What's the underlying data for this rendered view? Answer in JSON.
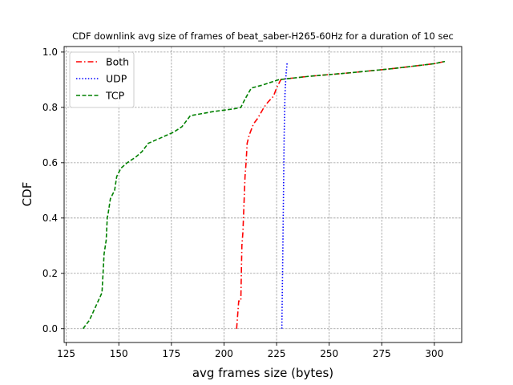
{
  "chart_data": {
    "type": "line",
    "title": "CDF downlink avg size of frames of beat_saber-H265-60Hz for a duration of 10 sec",
    "xlabel": "avg frames size (bytes)",
    "ylabel": "CDF",
    "xlim": [
      124,
      313
    ],
    "ylim": [
      -0.05,
      1.02
    ],
    "xticks": [
      125,
      150,
      175,
      200,
      225,
      250,
      275,
      300
    ],
    "yticks": [
      0.0,
      0.2,
      0.4,
      0.6,
      0.8,
      1.0
    ],
    "xtick_labels": [
      "125",
      "150",
      "175",
      "200",
      "225",
      "250",
      "275",
      "300"
    ],
    "ytick_labels": [
      "0.0",
      "0.2",
      "0.4",
      "0.6",
      "0.8",
      "1.0"
    ],
    "grid": true,
    "legend_position": "top-left",
    "series": [
      {
        "name": "Both",
        "color": "#ff0000",
        "dash": "dashdot",
        "x": [
          206,
          207,
          208,
          208.5,
          209,
          209.5,
          210,
          210.5,
          211,
          212,
          214,
          216,
          219,
          221,
          223.5,
          225,
          227,
          229,
          240,
          260,
          280,
          300,
          305
        ],
        "y": [
          0.0,
          0.1,
          0.1,
          0.3,
          0.35,
          0.45,
          0.55,
          0.6,
          0.67,
          0.7,
          0.74,
          0.76,
          0.8,
          0.82,
          0.84,
          0.87,
          0.9,
          0.903,
          0.912,
          0.925,
          0.94,
          0.958,
          0.966
        ]
      },
      {
        "name": "UDP",
        "color": "#0000ff",
        "dash": "dotted",
        "x": [
          227.5,
          228,
          228.3,
          228.6,
          229,
          229.5,
          230
        ],
        "y": [
          0.0,
          0.3,
          0.5,
          0.7,
          0.85,
          0.92,
          0.96
        ]
      },
      {
        "name": "TCP",
        "color": "#008000",
        "dash": "dashed",
        "x": [
          133,
          136,
          139,
          142,
          142.5,
          143,
          144,
          144.5,
          145,
          146,
          148,
          149,
          151,
          154,
          158,
          161,
          164,
          170,
          176,
          180,
          182,
          184,
          195,
          205,
          208,
          210,
          213,
          218,
          226,
          240,
          260,
          280,
          300,
          305
        ],
        "y": [
          0.0,
          0.03,
          0.08,
          0.13,
          0.2,
          0.27,
          0.32,
          0.4,
          0.42,
          0.47,
          0.5,
          0.55,
          0.58,
          0.6,
          0.62,
          0.64,
          0.67,
          0.69,
          0.71,
          0.73,
          0.75,
          0.77,
          0.785,
          0.795,
          0.8,
          0.83,
          0.87,
          0.88,
          0.9,
          0.912,
          0.925,
          0.94,
          0.958,
          0.966
        ]
      }
    ]
  }
}
